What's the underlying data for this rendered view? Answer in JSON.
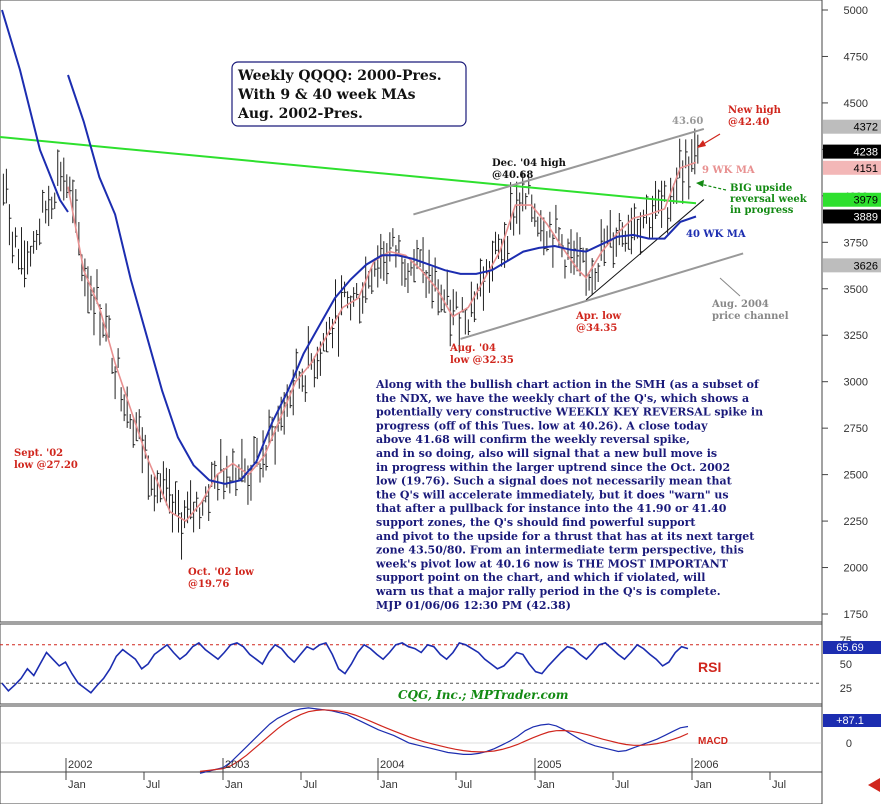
{
  "chart_data": [
    {
      "type": "line",
      "title_lines": [
        "Weekly QQQQ: 2000-Pres.",
        "With 9 & 40 week MAs",
        "Aug. 2002-Pres."
      ],
      "y_ticks": [
        "5000",
        "4750",
        "4500",
        "4250",
        "4000",
        "3750",
        "3500",
        "3250",
        "3000",
        "2750",
        "2500",
        "2250",
        "2000",
        "1750"
      ],
      "ylim": [
        1600,
        5050
      ],
      "x_year_labels": [
        "2002",
        "2003",
        "2004",
        "2005",
        "2006"
      ],
      "x_month_labels": [
        "Jan",
        "Jul",
        "Jan",
        "Jul",
        "Jan",
        "Jul",
        "Jan",
        "Jul",
        "Jan",
        "Jul"
      ],
      "price_badges": [
        {
          "text": "4372",
          "value": 4372,
          "style": "gray"
        },
        {
          "text": "4238",
          "value": 4238,
          "style": "black"
        },
        {
          "text": "4151",
          "value": 4151,
          "style": "pink"
        },
        {
          "text": "3979",
          "value": 3979,
          "style": "green"
        },
        {
          "text": "3889",
          "value": 3889,
          "style": "black"
        },
        {
          "text": "3626",
          "value": 3626,
          "style": "gray"
        }
      ],
      "series": [
        {
          "name": "9 WK MA",
          "color": "#e89090",
          "points": [
            [
              2002.0,
              4050
            ],
            [
              2002.1,
              3600
            ],
            [
              2002.2,
              3400
            ],
            [
              2002.3,
              3100
            ],
            [
              2002.4,
              2850
            ],
            [
              2002.5,
              2600
            ],
            [
              2002.6,
              2400
            ],
            [
              2002.65,
              2300
            ],
            [
              2002.75,
              2250
            ],
            [
              2002.85,
              2350
            ],
            [
              2002.95,
              2500
            ],
            [
              2003.05,
              2560
            ],
            [
              2003.15,
              2500
            ],
            [
              2003.25,
              2600
            ],
            [
              2003.35,
              2800
            ],
            [
              2003.45,
              3000
            ],
            [
              2003.55,
              3100
            ],
            [
              2003.65,
              3250
            ],
            [
              2003.75,
              3400
            ],
            [
              2003.85,
              3450
            ],
            [
              2003.95,
              3650
            ],
            [
              2004.05,
              3700
            ],
            [
              2004.15,
              3680
            ],
            [
              2004.25,
              3600
            ],
            [
              2004.35,
              3500
            ],
            [
              2004.45,
              3350
            ],
            [
              2004.55,
              3400
            ],
            [
              2004.65,
              3550
            ],
            [
              2004.75,
              3700
            ],
            [
              2004.85,
              3950
            ],
            [
              2004.95,
              3950
            ],
            [
              2005.05,
              3850
            ],
            [
              2005.15,
              3720
            ],
            [
              2005.25,
              3600
            ],
            [
              2005.3,
              3560
            ],
            [
              2005.4,
              3700
            ],
            [
              2005.5,
              3800
            ],
            [
              2005.6,
              3880
            ],
            [
              2005.7,
              3900
            ],
            [
              2005.8,
              3930
            ],
            [
              2005.9,
              4150
            ],
            [
              2006.0,
              4180
            ]
          ]
        },
        {
          "name": "40 WK MA",
          "color": "#1c2db0",
          "points": [
            [
              2002.0,
              4650
            ],
            [
              2002.1,
              4400
            ],
            [
              2002.2,
              4100
            ],
            [
              2002.3,
              3900
            ],
            [
              2002.4,
              3550
            ],
            [
              2002.5,
              3250
            ],
            [
              2002.6,
              2950
            ],
            [
              2002.7,
              2700
            ],
            [
              2002.8,
              2550
            ],
            [
              2002.9,
              2470
            ],
            [
              2003.0,
              2450
            ],
            [
              2003.1,
              2470
            ],
            [
              2003.2,
              2570
            ],
            [
              2003.3,
              2780
            ],
            [
              2003.4,
              2950
            ],
            [
              2003.5,
              3150
            ],
            [
              2003.6,
              3300
            ],
            [
              2003.7,
              3450
            ],
            [
              2003.8,
              3550
            ],
            [
              2003.9,
              3630
            ],
            [
              2004.0,
              3680
            ],
            [
              2004.1,
              3680
            ],
            [
              2004.2,
              3660
            ],
            [
              2004.3,
              3630
            ],
            [
              2004.4,
              3600
            ],
            [
              2004.5,
              3580
            ],
            [
              2004.6,
              3580
            ],
            [
              2004.7,
              3600
            ],
            [
              2004.8,
              3650
            ],
            [
              2004.9,
              3700
            ],
            [
              2005.0,
              3720
            ],
            [
              2005.1,
              3730
            ],
            [
              2005.2,
              3710
            ],
            [
              2005.3,
              3700
            ],
            [
              2005.4,
              3740
            ],
            [
              2005.5,
              3780
            ],
            [
              2005.6,
              3790
            ],
            [
              2005.7,
              3770
            ],
            [
              2005.8,
              3770
            ],
            [
              2005.9,
              3860
            ],
            [
              2006.0,
              3889
            ]
          ]
        }
      ],
      "trendlines": [
        {
          "label": "downtrend",
          "color": "#2ee02e",
          "points": [
            [
              2001.4,
              4330
            ],
            [
              2006.0,
              3960
            ]
          ]
        },
        {
          "label": "channel-upper",
          "color": "#999999",
          "points": [
            [
              2004.2,
              3900
            ],
            [
              2006.05,
              4360
            ]
          ]
        },
        {
          "label": "channel-lower",
          "color": "#999999",
          "points": [
            [
              2004.5,
              3230
            ],
            [
              2006.3,
              3690
            ]
          ]
        },
        {
          "label": "uptrend",
          "color": "#111111",
          "points": [
            [
              2005.3,
              3440
            ],
            [
              2006.05,
              3980
            ]
          ]
        }
      ],
      "annotations": [
        {
          "text": "43.60",
          "color": "#9a9a9a"
        },
        {
          "text": "New high\n@42.40",
          "color": "#d0261d"
        },
        {
          "text": "9 WK MA",
          "color": "#e89090"
        },
        {
          "text": "BIG upside\nreversal week\nin progress",
          "color": "#138a13"
        },
        {
          "text": "40 WK MA",
          "color": "#1c2db0"
        },
        {
          "text": "Dec. '04 high\n@40.68",
          "color": "#111111"
        },
        {
          "text": "Aug. 2004\nprice channel",
          "color": "#888888"
        },
        {
          "text": "Apr. low\n@34.35",
          "color": "#d0261d"
        },
        {
          "text": "Aug. '04\nlow @32.35",
          "color": "#d0261d"
        },
        {
          "text": "Sept. '02\nlow @27.20",
          "color": "#d0261d"
        },
        {
          "text": "Oct. '02 low\n@19.76",
          "color": "#d0261d"
        }
      ],
      "commentary_lines": [
        "Along with the bullish chart action in the SMH (as a subset of",
        "the NDX, we have the weekly chart of the Q's, which shows a",
        "potentially very constructive WEEKLY KEY REVERSAL spike in",
        "progress (off of this Tues. low at 40.26). A close today",
        "above 41.68 will confirm the weekly reversal spike,",
        "and in so doing, also will signal that a new bull move is",
        "in progress within the larger uptrend since the Oct. 2002",
        "low (19.76).  Such a signal does not necessarily mean that",
        "the Q's will accelerate immediately, but it does \"warn\" us",
        "that after a pullback for instance into the 41.90 or 41.40",
        "support zones, the Q's should find powerful support",
        "and pivot to the upside for a thrust that has at its next target",
        "zone 43.50/80. From an intermediate term perspective, this",
        "week's pivot low at 40.16 now is THE MOST IMPORTANT",
        "support point on the chart, and which if violated, will",
        "warn us that a major rally period in the Q's is complete.",
        "MJP 01/06/06 12:30 PM (42.38)"
      ]
    },
    {
      "type": "line",
      "label": "RSI",
      "y_ticks": [
        "75",
        "50",
        "25"
      ],
      "ylim": [
        10,
        80
      ],
      "current": "65.69",
      "series": [
        {
          "name": "RSI",
          "color": "#1c2db0",
          "values": [
            30,
            22,
            28,
            35,
            45,
            38,
            50,
            62,
            55,
            48,
            52,
            40,
            30,
            25,
            20,
            28,
            35,
            45,
            58,
            65,
            60,
            55,
            45,
            50,
            60,
            65,
            70,
            62,
            55,
            60,
            68,
            72,
            65,
            60,
            55,
            62,
            70,
            72,
            68,
            60,
            55,
            50,
            62,
            70,
            66,
            58,
            52,
            60,
            68,
            65,
            70,
            72,
            60,
            45,
            40,
            50,
            62,
            70,
            66,
            60,
            55,
            62,
            70,
            72,
            68,
            66,
            62,
            70,
            68,
            60,
            55,
            62,
            72,
            70,
            66,
            62,
            55,
            50,
            45,
            48,
            55,
            62,
            60,
            50,
            42,
            40,
            48,
            55,
            62,
            68,
            66,
            60,
            55,
            62,
            70,
            72,
            66,
            60,
            55,
            62,
            70,
            66,
            60,
            55,
            48,
            52,
            62,
            68,
            66
          ]
        }
      ]
    },
    {
      "type": "line",
      "label": "MACD",
      "y_ticks": [
        "0"
      ],
      "ylim": [
        -200,
        200
      ],
      "current": "+87.1",
      "series": [
        {
          "name": "MACD",
          "color": "#1c2db0",
          "values": [
            -160,
            -150,
            -140,
            -130,
            -100,
            -60,
            -20,
            20,
            60,
            100,
            130,
            150,
            170,
            180,
            185,
            180,
            175,
            170,
            160,
            150,
            130,
            110,
            90,
            70,
            55,
            40,
            20,
            0,
            -10,
            -20,
            -30,
            -40,
            -50,
            -55,
            -60,
            -60,
            -55,
            -45,
            -30,
            -10,
            10,
            35,
            65,
            85,
            95,
            100,
            90,
            70,
            45,
            20,
            0,
            -15,
            -25,
            -35,
            -45,
            -40,
            -25,
            -10,
            5,
            20,
            40,
            60,
            80,
            87
          ]
        },
        {
          "name": "Signal",
          "color": "#d0261d",
          "values": [
            -150,
            -145,
            -140,
            -135,
            -120,
            -95,
            -65,
            -30,
            5,
            40,
            75,
            105,
            130,
            150,
            165,
            172,
            175,
            172,
            168,
            160,
            148,
            132,
            115,
            97,
            80,
            64,
            48,
            32,
            18,
            6,
            -5,
            -15,
            -25,
            -33,
            -40,
            -45,
            -47,
            -46,
            -42,
            -34,
            -22,
            -8,
            10,
            28,
            44,
            58,
            65,
            66,
            62,
            54,
            44,
            32,
            20,
            10,
            0,
            -8,
            -12,
            -12,
            -9,
            -3,
            6,
            18,
            32,
            50
          ]
        }
      ]
    }
  ],
  "watermark": "CQG, Inc.; MPTrader.com",
  "colors": {
    "rsi_overbought": "#d0261d",
    "rsi_oversold": "#555555",
    "badge_blue": "#1c2db0"
  }
}
